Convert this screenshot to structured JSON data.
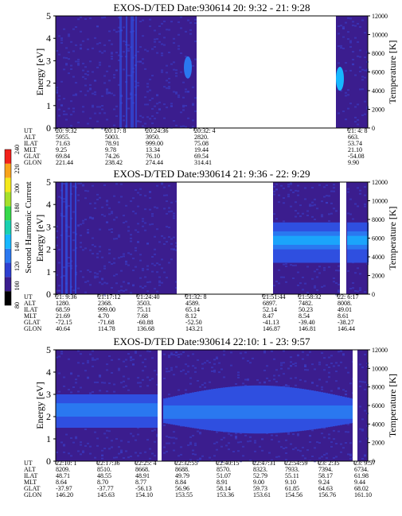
{
  "chart_data": [
    {
      "type": "heatmap",
      "title": "EXOS-D/TED   Date:930614  20: 9:32 - 21: 9:28",
      "ylabel": "Energy [eV]",
      "ylabel_right": "Temperature [K]",
      "ylim": [
        0,
        5
      ],
      "ylim_right": [
        0,
        12000
      ],
      "y_ticks": [
        "0",
        "1",
        "2",
        "3",
        "4",
        "5"
      ],
      "y_ticks_right": [
        "0",
        "2000",
        "4000",
        "6000",
        "8000",
        "10000",
        "12000"
      ],
      "table": {
        "rows": [
          {
            "label": "UT",
            "values": [
              "20: 9:32",
              "20:17: 8",
              "20:24:36",
              "20:32: 4",
              "21: 4: 8"
            ]
          },
          {
            "label": "ALT",
            "values": [
              "5955.",
              "5003.",
              "3950.",
              "2820.",
              "663."
            ]
          },
          {
            "label": "ILAT",
            "values": [
              "71.63",
              "78.91",
              "999.00",
              "75.08",
              "53.74"
            ]
          },
          {
            "label": "MLT",
            "values": [
              "9.25",
              "9.78",
              "13.34",
              "19.44",
              "21.10"
            ]
          },
          {
            "label": "GLAT",
            "values": [
              "69.84",
              "74.26",
              "76.10",
              "69.54",
              "-54.08"
            ]
          },
          {
            "label": "GLON",
            "values": [
              "221.44",
              "238.42",
              "274.44",
              "314.41",
              "9.90"
            ]
          }
        ]
      }
    },
    {
      "type": "heatmap",
      "title": "EXOS-D/TED   Date:930614  21: 9:36 - 22: 9:29",
      "ylabel": "Energy [eV]",
      "ylabel_right": "Temperature [K]",
      "ylim": [
        0,
        5
      ],
      "ylim_right": [
        0,
        12000
      ],
      "y_ticks": [
        "0",
        "1",
        "2",
        "3",
        "4",
        "5"
      ],
      "y_ticks_right": [
        "0",
        "2000",
        "4000",
        "6000",
        "8000",
        "10000",
        "12000"
      ],
      "table": {
        "rows": [
          {
            "label": "UT",
            "values": [
              "21: 9:36",
              "21:17:12",
              "21:24:40",
              "21:32: 8",
              "21:51:44",
              "21:58:32",
              "22: 6:17"
            ]
          },
          {
            "label": "ALT",
            "values": [
              "1280.",
              "2368.",
              "3503.",
              "4589.",
              "6897.",
              "7482.",
              "8008."
            ]
          },
          {
            "label": "ILAT",
            "values": [
              "68.59",
              "999.00",
              "75.11",
              "65.14",
              "52.14",
              "50.23",
              "49.01"
            ]
          },
          {
            "label": "MLT",
            "values": [
              "21.69",
              "4.70",
              "7.68",
              "8.12",
              "8.47",
              "8.54",
              "8.61"
            ]
          },
          {
            "label": "GLAT",
            "values": [
              "-72.15",
              "-71.68",
              "-60.88",
              "-52.50",
              "-41.13",
              "-39.40",
              "-38.27"
            ]
          },
          {
            "label": "GLON",
            "values": [
              "40.64",
              "114.78",
              "136.68",
              "143.21",
              "146.87",
              "146.81",
              "146.44"
            ]
          }
        ]
      }
    },
    {
      "type": "heatmap",
      "title": "EXOS-D/TED   Date:930614  22:10: 1 - 23: 9:57",
      "ylabel": "Energy [eV]",
      "ylabel_right": "Temperature [K]",
      "ylim": [
        0,
        5
      ],
      "ylim_right": [
        0,
        12000
      ],
      "y_ticks": [
        "0",
        "1",
        "2",
        "3",
        "4",
        "5"
      ],
      "y_ticks_right": [
        "0",
        "2000",
        "4000",
        "6000",
        "8000",
        "10000",
        "12000"
      ],
      "table": {
        "rows": [
          {
            "label": "UT",
            "values": [
              "22:10: 1",
              "22:17:36",
              "22:25: 4",
              "22:32:55",
              "22:40:15",
              "22:47:31",
              "22:54:59",
              "23: 2:35",
              "23: 9:57"
            ]
          },
          {
            "label": "ALT",
            "values": [
              "8209.",
              "8510.",
              "8668.",
              "8688.",
              "8570.",
              "8323.",
              "7933.",
              "7394.",
              "6734."
            ]
          },
          {
            "label": "ILAT",
            "values": [
              "48.71",
              "48.55",
              "48.91",
              "49.79",
              "51.07",
              "52.79",
              "55.11",
              "58.17",
              "61.98"
            ]
          },
          {
            "label": "MLT",
            "values": [
              "8.64",
              "8.70",
              "8.77",
              "8.84",
              "8.91",
              "9.00",
              "9.10",
              "9.24",
              "9.44"
            ]
          },
          {
            "label": "GLAT",
            "values": [
              "-37.97",
              "-37.77",
              "-56.13",
              "56.96",
              "58.14",
              "59.73",
              "61.85",
              "64.63",
              "68.02"
            ]
          },
          {
            "label": "GLON",
            "values": [
              "146.20",
              "145.63",
              "154.10",
              "153.55",
              "153.36",
              "153.61",
              "154.56",
              "156.76",
              "161.10"
            ]
          }
        ]
      }
    }
  ],
  "colorbar": {
    "label": "Second Harmonic Current",
    "ticks": [
      "80",
      "100",
      "120",
      "140",
      "160",
      "180",
      "200",
      "220",
      "240"
    ],
    "range": [
      80,
      240
    ]
  },
  "colors": {
    "background": "#3b1d8e",
    "speckle": "#3a3fc8",
    "band_mid": "#2f4fe0",
    "band_bright": "#2a78f0",
    "band_peak": "#16b7ff",
    "gap": "#ffffff"
  }
}
